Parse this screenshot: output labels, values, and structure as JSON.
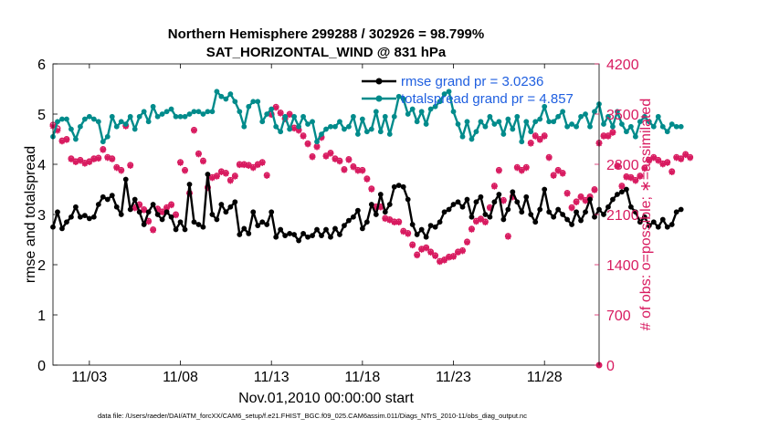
{
  "chart_data": {
    "type": "line",
    "title_line1": "Northern Hemisphere 299288 / 302926 = 98.799%",
    "title_line2": "SAT_HORIZONTAL_WIND @ 831 hPa",
    "xlabel": "Nov.01,2010 00:00:00 start",
    "ylabel_left": "rmse and totalspread",
    "ylabel_right": "# of obs: o=possible; ∗=assimilated",
    "xlim": [
      1.0,
      31.0
    ],
    "ylim_left": [
      0,
      6
    ],
    "ylim_right": [
      0,
      4200
    ],
    "x_ticks": [
      3,
      8,
      13,
      18,
      23,
      28
    ],
    "x_tick_labels": [
      "11/03",
      "11/08",
      "11/13",
      "11/18",
      "11/23",
      "11/28"
    ],
    "y_ticks_left": [
      0,
      1,
      2,
      3,
      4,
      5,
      6
    ],
    "y_ticks_right": [
      0,
      700,
      1400,
      2100,
      2800,
      3500,
      4200
    ],
    "grid": false,
    "legend_position": "top-right",
    "x_start": 1.0,
    "x_step": 0.25,
    "series": [
      {
        "name": "rmse",
        "legend": "rmse grand pr = 3.0236",
        "color": "#000000",
        "axis": "left",
        "values": [
          2.75,
          3.05,
          2.72,
          2.85,
          2.95,
          3.15,
          2.95,
          2.98,
          2.92,
          2.95,
          3.2,
          3.35,
          3.3,
          3.38,
          3.15,
          3.0,
          3.7,
          3.1,
          3.3,
          3.05,
          2.8,
          3.05,
          3.2,
          3.0,
          2.9,
          3.05,
          2.95,
          2.7,
          2.85,
          2.7,
          3.6,
          2.85,
          2.8,
          2.75,
          3.8,
          3.0,
          2.9,
          3.2,
          3.05,
          3.15,
          3.25,
          2.6,
          2.72,
          2.62,
          3.05,
          2.78,
          2.85,
          2.8,
          3.05,
          2.55,
          2.7,
          2.58,
          2.62,
          2.6,
          2.48,
          2.62,
          2.55,
          2.58,
          2.7,
          2.58,
          2.7,
          2.55,
          2.72,
          2.6,
          2.78,
          2.88,
          2.95,
          3.08,
          2.72,
          2.85,
          3.2,
          3.0,
          3.4,
          3.05,
          3.2,
          3.55,
          3.58,
          3.55,
          3.3,
          2.8,
          2.6,
          2.7,
          2.55,
          2.78,
          2.75,
          2.85,
          3.05,
          3.1,
          3.2,
          3.25,
          3.15,
          3.3,
          2.95,
          3.25,
          3.35,
          3.0,
          2.95,
          3.25,
          3.4,
          2.9,
          3.1,
          3.45,
          3.25,
          3.05,
          3.35,
          3.0,
          2.85,
          3.1,
          3.5,
          3.05,
          2.95,
          3.1,
          3.0,
          2.9,
          2.8,
          3.05,
          2.88,
          3.05,
          3.3,
          2.95,
          3.1,
          3.0,
          3.15,
          3.3,
          3.4,
          3.45,
          3.5,
          3.15,
          3.05,
          2.85,
          2.95,
          2.78,
          2.85,
          2.75,
          2.9,
          2.75,
          2.8,
          3.05,
          3.1
        ]
      },
      {
        "name": "totalspread",
        "legend": "totalspread grand pr = 4.857",
        "color": "#008b8b",
        "axis": "left",
        "values": [
          4.55,
          4.85,
          4.9,
          4.9,
          4.7,
          4.5,
          4.75,
          4.9,
          4.95,
          4.9,
          4.85,
          4.45,
          4.55,
          4.95,
          4.75,
          4.85,
          4.8,
          4.95,
          4.7,
          4.95,
          5.05,
          4.85,
          5.15,
          4.95,
          5.0,
          5.05,
          5.1,
          4.95,
          4.95,
          4.95,
          5.0,
          5.05,
          5.05,
          5.0,
          5.05,
          5.05,
          5.45,
          5.35,
          5.3,
          5.4,
          5.25,
          5.05,
          4.75,
          5.15,
          5.25,
          5.25,
          4.85,
          5.0,
          5.1,
          4.75,
          4.65,
          4.95,
          4.7,
          4.95,
          4.75,
          4.95,
          4.8,
          4.85,
          4.45,
          4.6,
          4.7,
          4.75,
          4.75,
          4.85,
          4.7,
          4.75,
          4.95,
          4.6,
          4.9,
          4.65,
          4.7,
          5.05,
          4.65,
          4.95,
          4.6,
          4.95,
          5.35,
          5.3,
          5.0,
          5.1,
          4.85,
          5.05,
          4.8,
          5.1,
          5.15,
          5.25,
          5.4,
          5.45,
          5.05,
          4.8,
          4.55,
          4.85,
          4.5,
          4.65,
          4.85,
          4.75,
          4.95,
          4.8,
          4.85,
          4.6,
          4.9,
          4.7,
          4.95,
          4.45,
          4.85,
          4.65,
          4.85,
          4.9,
          5.15,
          4.85,
          4.85,
          4.95,
          5.05,
          4.75,
          4.8,
          4.75,
          4.95,
          5.0,
          4.75,
          5.05,
          5.2,
          4.8,
          4.95,
          4.75,
          5.05,
          4.8,
          4.65,
          4.75,
          4.55,
          4.85,
          4.95,
          4.85,
          4.75,
          4.95,
          4.75,
          4.65,
          4.8,
          4.75,
          4.75
        ]
      }
    ],
    "obs_possible": [
      3350,
      3300,
      3130,
      3150,
      2880,
      2840,
      2860,
      2820,
      2840,
      2880,
      2890,
      3010,
      2900,
      2880,
      2760,
      2720,
      3340,
      2790,
      2200,
      2240,
      2170,
      2010,
      1890,
      2180,
      2140,
      2200,
      2240,
      2100,
      2830,
      2720,
      2400,
      3280,
      2950,
      2850,
      2480,
      2620,
      2640,
      2700,
      2680,
      2580,
      2640,
      2800,
      2800,
      2790,
      2760,
      2800,
      2830,
      2650,
      3500,
      3600,
      3520,
      3440,
      3500,
      3310,
      3280,
      3200,
      3090,
      2910,
      3050,
      3180,
      2920,
      2960,
      2880,
      2850,
      2730,
      2870,
      2770,
      2720,
      2720,
      2600,
      2460,
      2210,
      2210,
      2050,
      2030,
      2000,
      2000,
      1870,
      1840,
      1680,
      1540,
      1620,
      1640,
      1580,
      1530,
      1450,
      1470,
      1510,
      1520,
      1580,
      1600,
      1720,
      1900,
      2010,
      2040,
      2000,
      2200,
      2500,
      2720,
      2300,
      1800,
      2350,
      2760,
      2720,
      2760,
      3100,
      3200,
      3150,
      3200,
      2900,
      2650,
      2720,
      2680,
      2400,
      2200,
      2280,
      2350,
      2300,
      2350,
      2450,
      3100,
      3200,
      3200,
      3250,
      2780,
      2500,
      2630,
      2620,
      2580,
      2640,
      2750,
      2860,
      2900,
      2860,
      2810,
      2830,
      2700,
      2900,
      2880,
      2940,
      2900
    ],
    "obs_assimilated": [
      3330,
      3270,
      3120,
      3140,
      2870,
      2830,
      2850,
      2810,
      2830,
      2870,
      2880,
      3000,
      2890,
      2870,
      2750,
      2710,
      3330,
      2780,
      2190,
      2230,
      2160,
      2000,
      1880,
      2170,
      2130,
      2190,
      2230,
      2090,
      2820,
      2710,
      2390,
      3270,
      2940,
      2840,
      2470,
      2610,
      2630,
      2690,
      2670,
      2570,
      2630,
      2790,
      2790,
      2780,
      2750,
      2790,
      2820,
      2640,
      3490,
      3590,
      3510,
      3430,
      3490,
      3300,
      3270,
      3190,
      3080,
      2900,
      3040,
      3170,
      2910,
      2950,
      2870,
      2840,
      2720,
      2860,
      2760,
      2710,
      2710,
      2590,
      2450,
      2200,
      2200,
      2040,
      2020,
      1990,
      1990,
      1860,
      1830,
      1670,
      1530,
      1610,
      1630,
      1570,
      1520,
      1440,
      1460,
      1500,
      1510,
      1570,
      1590,
      1710,
      1890,
      2000,
      2030,
      1990,
      2190,
      2490,
      2710,
      2290,
      1790,
      2340,
      2750,
      2710,
      2750,
      3090,
      3190,
      3140,
      3190,
      2890,
      2640,
      2710,
      2670,
      2390,
      2190,
      2270,
      2340,
      2290,
      2340,
      2440,
      3090,
      3190,
      3190,
      3240,
      2770,
      2490,
      2620,
      2610,
      2570,
      2630,
      2740,
      2850,
      2890,
      2850,
      2800,
      2820,
      2690,
      2890,
      2870,
      2930,
      2890
    ]
  },
  "footer": "data file: /Users/raeder/DAI/ATM_forcXX/CAM6_setup/f.e21.FHIST_BGC.f09_025.CAM6assim.011/Diags_NTrS_2010-11/obs_diag_output.nc"
}
